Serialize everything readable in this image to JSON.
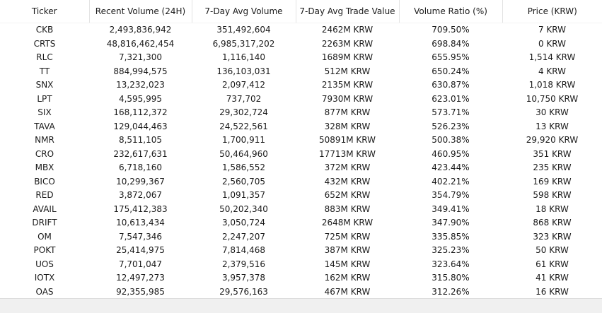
{
  "table": {
    "columns": [
      "Ticker",
      "Recent Volume (24H)",
      "7-Day Avg Volume",
      "7-Day Avg Trade Value",
      "Volume Ratio (%)",
      "Price (KRW)"
    ],
    "rows": [
      [
        "CKB",
        "2,493,836,942",
        "351,492,604",
        "2462M KRW",
        "709.50%",
        "7 KRW"
      ],
      [
        "CRTS",
        "48,816,462,454",
        "6,985,317,202",
        "2263M KRW",
        "698.84%",
        "0 KRW"
      ],
      [
        "RLC",
        "7,321,300",
        "1,116,140",
        "1689M KRW",
        "655.95%",
        "1,514 KRW"
      ],
      [
        "TT",
        "884,994,575",
        "136,103,031",
        "512M KRW",
        "650.24%",
        "4 KRW"
      ],
      [
        "SNX",
        "13,232,023",
        "2,097,412",
        "2135M KRW",
        "630.87%",
        "1,018 KRW"
      ],
      [
        "LPT",
        "4,595,995",
        "737,702",
        "7930M KRW",
        "623.01%",
        "10,750 KRW"
      ],
      [
        "SIX",
        "168,112,372",
        "29,302,724",
        "877M KRW",
        "573.71%",
        "30 KRW"
      ],
      [
        "TAVA",
        "129,044,463",
        "24,522,561",
        "328M KRW",
        "526.23%",
        "13 KRW"
      ],
      [
        "NMR",
        "8,511,105",
        "1,700,911",
        "50891M KRW",
        "500.38%",
        "29,920 KRW"
      ],
      [
        "CRO",
        "232,617,631",
        "50,464,960",
        "17713M KRW",
        "460.95%",
        "351 KRW"
      ],
      [
        "MBX",
        "6,718,160",
        "1,586,552",
        "372M KRW",
        "423.44%",
        "235 KRW"
      ],
      [
        "BICO",
        "10,299,367",
        "2,560,705",
        "432M KRW",
        "402.21%",
        "169 KRW"
      ],
      [
        "RED",
        "3,872,067",
        "1,091,357",
        "652M KRW",
        "354.79%",
        "598 KRW"
      ],
      [
        "AVAIL",
        "175,412,383",
        "50,202,340",
        "883M KRW",
        "349.41%",
        "18 KRW"
      ],
      [
        "DRIFT",
        "10,613,434",
        "3,050,724",
        "2648M KRW",
        "347.90%",
        "868 KRW"
      ],
      [
        "OM",
        "7,547,346",
        "2,247,207",
        "725M KRW",
        "335.85%",
        "323 KRW"
      ],
      [
        "POKT",
        "25,414,975",
        "7,814,468",
        "387M KRW",
        "325.23%",
        "50 KRW"
      ],
      [
        "UOS",
        "7,701,047",
        "2,379,516",
        "145M KRW",
        "323.64%",
        "61 KRW"
      ],
      [
        "IOTX",
        "12,497,273",
        "3,957,378",
        "162M KRW",
        "315.80%",
        "41 KRW"
      ],
      [
        "OAS",
        "92,355,985",
        "29,576,163",
        "467M KRW",
        "312.26%",
        "16 KRW"
      ]
    ]
  }
}
